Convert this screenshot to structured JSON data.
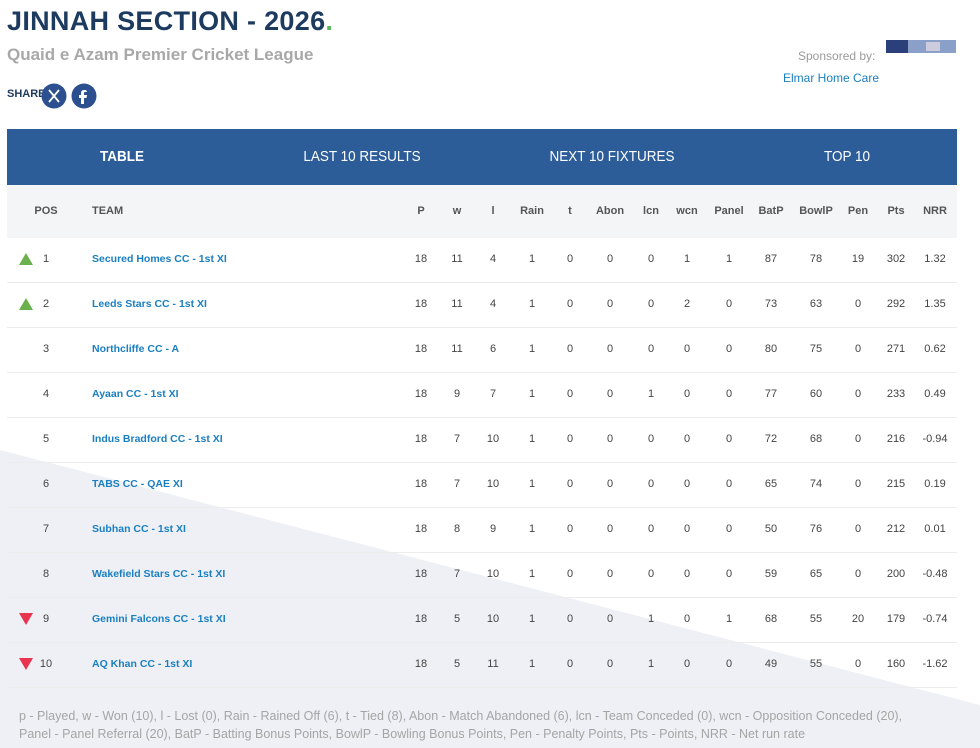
{
  "header": {
    "title": "JINNAH SECTION - 2026",
    "title_dot": ".",
    "subtitle": "Quaid e Azam Premier Cricket League",
    "share_label": "SHARE",
    "sponsor_label": "Sponsored by:",
    "sponsor_name": "Elmar Home Care"
  },
  "tabs": [
    "TABLE",
    "LAST 10 RESULTS",
    "NEXT 10 FIXTURES",
    "TOP 10"
  ],
  "table": {
    "columns": [
      "POS",
      "TEAM",
      "P",
      "w",
      "l",
      "Rain",
      "t",
      "Abon",
      "lcn",
      "wcn",
      "Panel",
      "BatP",
      "BowlP",
      "Pen",
      "Pts",
      "NRR"
    ],
    "movement": [
      "up",
      "up",
      null,
      null,
      null,
      null,
      null,
      null,
      "down",
      "down"
    ],
    "rows": [
      [
        "1",
        "Secured Homes CC - 1st XI",
        "18",
        "11",
        "4",
        "1",
        "0",
        "0",
        "0",
        "1",
        "1",
        "87",
        "78",
        "19",
        "302",
        "1.32"
      ],
      [
        "2",
        "Leeds Stars CC - 1st XI",
        "18",
        "11",
        "4",
        "1",
        "0",
        "0",
        "0",
        "2",
        "0",
        "73",
        "63",
        "0",
        "292",
        "1.35"
      ],
      [
        "3",
        "Northcliffe CC - A",
        "18",
        "11",
        "6",
        "1",
        "0",
        "0",
        "0",
        "0",
        "0",
        "80",
        "75",
        "0",
        "271",
        "0.62"
      ],
      [
        "4",
        "Ayaan CC - 1st XI",
        "18",
        "9",
        "7",
        "1",
        "0",
        "0",
        "1",
        "0",
        "0",
        "77",
        "60",
        "0",
        "233",
        "0.49"
      ],
      [
        "5",
        "Indus Bradford CC - 1st XI",
        "18",
        "7",
        "10",
        "1",
        "0",
        "0",
        "0",
        "0",
        "0",
        "72",
        "68",
        "0",
        "216",
        "-0.94"
      ],
      [
        "6",
        "TABS CC - QAE XI",
        "18",
        "7",
        "10",
        "1",
        "0",
        "0",
        "0",
        "0",
        "0",
        "65",
        "74",
        "0",
        "215",
        "0.19"
      ],
      [
        "7",
        "Subhan CC - 1st XI",
        "18",
        "8",
        "9",
        "1",
        "0",
        "0",
        "0",
        "0",
        "0",
        "50",
        "76",
        "0",
        "212",
        "0.01"
      ],
      [
        "8",
        "Wakefield Stars CC - 1st XI",
        "18",
        "7",
        "10",
        "1",
        "0",
        "0",
        "0",
        "0",
        "0",
        "59",
        "65",
        "0",
        "200",
        "-0.48"
      ],
      [
        "9",
        "Gemini Falcons CC - 1st XI",
        "18",
        "5",
        "10",
        "1",
        "0",
        "0",
        "1",
        "0",
        "1",
        "68",
        "55",
        "20",
        "179",
        "-0.74"
      ],
      [
        "10",
        "AQ Khan CC - 1st XI",
        "18",
        "5",
        "11",
        "1",
        "0",
        "0",
        "1",
        "0",
        "0",
        "49",
        "55",
        "0",
        "160",
        "-1.62"
      ]
    ]
  },
  "legend": "p - Played, w - Won (10), l - Lost (0), Rain - Rained Off (6), t - Tied (8), Abon - Match Abandoned (6), lcn - Team Conceded (0), wcn - Opposition Conceded (20), Panel - Panel Referral (20), BatP - Batting Bonus Points, BowlP - Bowling Bonus Points, Pen - Penalty Points, Pts - Points, NRR - Net run rate"
}
